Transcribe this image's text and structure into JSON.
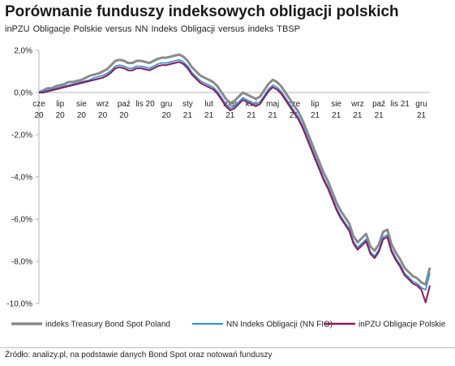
{
  "title": "Porównanie funduszy indeksowych obligacji polskich",
  "subtitle": "inPZU Obligacje Polskie   versus   NN Indeks Obligacji   versus   indeks TBSP",
  "source": "Źródło: analizy.pl, na podstawie danych Bond Spot oraz notowań funduszy",
  "colors": {
    "series_tbsp": "#8a8a8a",
    "series_nn": "#2b8fd6",
    "series_pzu": "#8b1a5c",
    "axis": "#b5b5b5"
  },
  "chart_data": {
    "type": "line",
    "title": "Porównanie funduszy indeksowych obligacji polskich",
    "xlabel": "",
    "ylabel": "",
    "ylim": [
      -10,
      2
    ],
    "y_ticks": [
      "2,0%",
      "0,0%",
      "-2,0%",
      "-4,0%",
      "-6,0%",
      "-8,0%",
      "-10,0%"
    ],
    "x_tick_labels": [
      {
        "top": "cze",
        "bottom": "20"
      },
      {
        "top": "lip",
        "bottom": "20"
      },
      {
        "top": "sie",
        "bottom": "20"
      },
      {
        "top": "wrz",
        "bottom": "20"
      },
      {
        "top": "paź",
        "bottom": "20"
      },
      {
        "top": "lis 20",
        "bottom": ""
      },
      {
        "top": "gru",
        "bottom": "20"
      },
      {
        "top": "sty",
        "bottom": "21"
      },
      {
        "top": "lut",
        "bottom": "21"
      },
      {
        "top": "mar",
        "bottom": "21"
      },
      {
        "top": "kwi",
        "bottom": "21"
      },
      {
        "top": "maj",
        "bottom": "21"
      },
      {
        "top": "cze",
        "bottom": "21"
      },
      {
        "top": "lip",
        "bottom": "21"
      },
      {
        "top": "sie",
        "bottom": "21"
      },
      {
        "top": "wrz",
        "bottom": "21"
      },
      {
        "top": "paź",
        "bottom": "21"
      },
      {
        "top": "lis 21",
        "bottom": ""
      },
      {
        "top": "gru",
        "bottom": "21"
      }
    ],
    "legend_position": "bottom",
    "grid": false,
    "series": [
      {
        "name": "indeks Treasury Bond Spot Poland",
        "x": [
          0,
          0.2,
          0.4,
          0.6,
          0.8,
          1.0,
          1.2,
          1.4,
          1.6,
          1.8,
          2.0,
          2.2,
          2.4,
          2.6,
          2.8,
          3.0,
          3.2,
          3.4,
          3.6,
          3.8,
          4.0,
          4.2,
          4.4,
          4.6,
          4.8,
          5.0,
          5.2,
          5.4,
          5.6,
          5.8,
          6.0,
          6.2,
          6.4,
          6.6,
          6.8,
          7.0,
          7.2,
          7.4,
          7.6,
          7.8,
          8.0,
          8.2,
          8.4,
          8.6,
          8.8,
          9.0,
          9.2,
          9.4,
          9.6,
          9.8,
          10.0,
          10.2,
          10.4,
          10.6,
          10.8,
          11.0,
          11.2,
          11.4,
          11.6,
          11.8,
          12.0,
          12.2,
          12.4,
          12.6,
          12.8,
          13.0,
          13.2,
          13.4,
          13.6,
          13.8,
          14.0,
          14.2,
          14.4,
          14.6,
          14.8,
          15.0,
          15.2,
          15.4,
          15.6,
          15.8,
          16.0,
          16.2,
          16.4,
          16.6,
          16.8,
          17.0,
          17.2,
          17.4,
          17.6,
          17.8,
          18.0,
          18.2,
          18.4
        ],
        "values": [
          0.0,
          0.1,
          0.2,
          0.2,
          0.3,
          0.35,
          0.4,
          0.5,
          0.5,
          0.55,
          0.6,
          0.7,
          0.8,
          0.85,
          0.9,
          1.0,
          1.1,
          1.3,
          1.5,
          1.55,
          1.5,
          1.4,
          1.4,
          1.5,
          1.5,
          1.45,
          1.4,
          1.5,
          1.6,
          1.65,
          1.65,
          1.7,
          1.75,
          1.8,
          1.7,
          1.5,
          1.2,
          1.0,
          0.8,
          0.7,
          0.6,
          0.5,
          0.3,
          0.0,
          -0.3,
          -0.5,
          -0.4,
          -0.2,
          0.0,
          -0.1,
          -0.2,
          -0.3,
          -0.2,
          0.1,
          0.4,
          0.6,
          0.5,
          0.3,
          0.0,
          -0.3,
          -0.6,
          -0.9,
          -1.3,
          -1.8,
          -2.3,
          -2.8,
          -3.3,
          -3.8,
          -4.2,
          -4.7,
          -5.2,
          -5.6,
          -5.9,
          -6.2,
          -6.8,
          -7.1,
          -6.9,
          -6.7,
          -7.3,
          -7.5,
          -7.2,
          -6.6,
          -6.5,
          -7.2,
          -7.6,
          -7.9,
          -8.3,
          -8.5,
          -8.7,
          -8.8,
          -9.0,
          -9.1,
          -8.3
        ]
      },
      {
        "name": "NN Indeks Obligacji (NN FIO)",
        "x": [
          0,
          0.2,
          0.4,
          0.6,
          0.8,
          1.0,
          1.2,
          1.4,
          1.6,
          1.8,
          2.0,
          2.2,
          2.4,
          2.6,
          2.8,
          3.0,
          3.2,
          3.4,
          3.6,
          3.8,
          4.0,
          4.2,
          4.4,
          4.6,
          4.8,
          5.0,
          5.2,
          5.4,
          5.6,
          5.8,
          6.0,
          6.2,
          6.4,
          6.6,
          6.8,
          7.0,
          7.2,
          7.4,
          7.6,
          7.8,
          8.0,
          8.2,
          8.4,
          8.6,
          8.8,
          9.0,
          9.2,
          9.4,
          9.6,
          9.8,
          10.0,
          10.2,
          10.4,
          10.6,
          10.8,
          11.0,
          11.2,
          11.4,
          11.6,
          11.8,
          12.0,
          12.2,
          12.4,
          12.6,
          12.8,
          13.0,
          13.2,
          13.4,
          13.6,
          13.8,
          14.0,
          14.2,
          14.4,
          14.6,
          14.8,
          15.0,
          15.2,
          15.4,
          15.6,
          15.8,
          16.0,
          16.2,
          16.4,
          16.6,
          16.8,
          17.0,
          17.2,
          17.4,
          17.6,
          17.8,
          18.0,
          18.2,
          18.4
        ],
        "values": [
          0.0,
          0.05,
          0.1,
          0.15,
          0.2,
          0.25,
          0.3,
          0.35,
          0.4,
          0.45,
          0.5,
          0.55,
          0.6,
          0.7,
          0.75,
          0.8,
          0.9,
          1.05,
          1.25,
          1.3,
          1.25,
          1.15,
          1.15,
          1.25,
          1.25,
          1.2,
          1.15,
          1.25,
          1.35,
          1.4,
          1.4,
          1.45,
          1.5,
          1.55,
          1.45,
          1.25,
          0.95,
          0.75,
          0.55,
          0.45,
          0.35,
          0.25,
          0.05,
          -0.25,
          -0.55,
          -0.75,
          -0.65,
          -0.45,
          -0.25,
          -0.35,
          -0.45,
          -0.55,
          -0.45,
          -0.15,
          0.15,
          0.35,
          0.25,
          0.05,
          -0.25,
          -0.55,
          -0.85,
          -1.15,
          -1.55,
          -2.05,
          -2.55,
          -3.05,
          -3.55,
          -4.05,
          -4.45,
          -4.95,
          -5.45,
          -5.85,
          -6.15,
          -6.45,
          -7.05,
          -7.35,
          -7.15,
          -6.95,
          -7.55,
          -7.75,
          -7.45,
          -6.85,
          -6.75,
          -7.45,
          -7.85,
          -8.15,
          -8.55,
          -8.75,
          -8.95,
          -9.05,
          -9.25,
          -9.35,
          -8.55
        ]
      },
      {
        "name": "inPZU Obligacje Polskie",
        "x": [
          0,
          0.2,
          0.4,
          0.6,
          0.8,
          1.0,
          1.2,
          1.4,
          1.6,
          1.8,
          2.0,
          2.2,
          2.4,
          2.6,
          2.8,
          3.0,
          3.2,
          3.4,
          3.6,
          3.8,
          4.0,
          4.2,
          4.4,
          4.6,
          4.8,
          5.0,
          5.2,
          5.4,
          5.6,
          5.8,
          6.0,
          6.2,
          6.4,
          6.6,
          6.8,
          7.0,
          7.2,
          7.4,
          7.6,
          7.8,
          8.0,
          8.2,
          8.4,
          8.6,
          8.8,
          9.0,
          9.2,
          9.4,
          9.6,
          9.8,
          10.0,
          10.2,
          10.4,
          10.6,
          10.8,
          11.0,
          11.2,
          11.4,
          11.6,
          11.8,
          12.0,
          12.2,
          12.4,
          12.6,
          12.8,
          13.0,
          13.2,
          13.4,
          13.6,
          13.8,
          14.0,
          14.2,
          14.4,
          14.6,
          14.8,
          15.0,
          15.2,
          15.4,
          15.6,
          15.8,
          16.0,
          16.2,
          16.4,
          16.6,
          16.8,
          17.0,
          17.2,
          17.4,
          17.6,
          17.8,
          18.0,
          18.2,
          18.4
        ],
        "values": [
          0.0,
          0.0,
          0.05,
          0.1,
          0.15,
          0.2,
          0.25,
          0.3,
          0.35,
          0.4,
          0.45,
          0.5,
          0.55,
          0.6,
          0.65,
          0.7,
          0.8,
          0.95,
          1.15,
          1.2,
          1.15,
          1.05,
          1.05,
          1.15,
          1.15,
          1.1,
          1.05,
          1.15,
          1.25,
          1.3,
          1.3,
          1.35,
          1.4,
          1.45,
          1.35,
          1.15,
          0.85,
          0.65,
          0.45,
          0.35,
          0.25,
          0.15,
          -0.05,
          -0.35,
          -0.65,
          -0.85,
          -0.75,
          -0.55,
          -0.35,
          -0.45,
          -0.55,
          -0.65,
          -0.55,
          -0.25,
          0.05,
          0.25,
          0.15,
          -0.05,
          -0.35,
          -0.65,
          -0.95,
          -1.25,
          -1.65,
          -2.15,
          -2.65,
          -3.15,
          -3.65,
          -4.15,
          -4.55,
          -5.05,
          -5.55,
          -5.95,
          -6.25,
          -6.55,
          -7.15,
          -7.45,
          -7.25,
          -7.05,
          -7.65,
          -7.85,
          -7.55,
          -6.95,
          -6.85,
          -7.55,
          -7.95,
          -8.25,
          -8.65,
          -8.85,
          -9.05,
          -9.15,
          -9.35,
          -9.95,
          -9.15
        ]
      }
    ]
  }
}
